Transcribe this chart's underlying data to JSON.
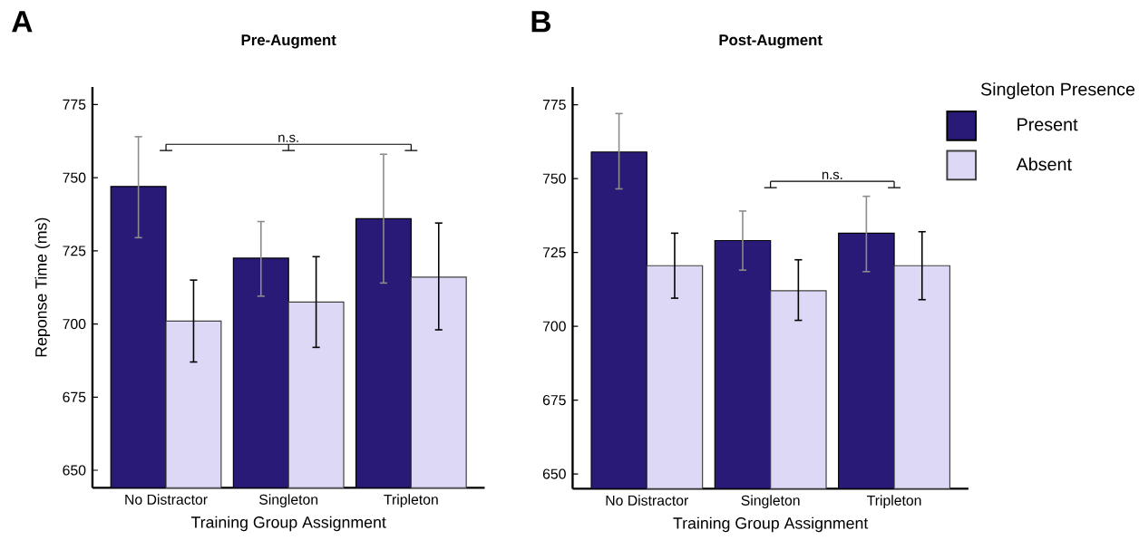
{
  "chart_data": [
    {
      "type": "bar",
      "title": "Pre-Augment",
      "xlabel": "Training Group Assignment",
      "ylabel": "Reponse Time (ms)",
      "categories": [
        "No Distractor",
        "Singleton",
        "Tripleton"
      ],
      "series": [
        {
          "color": "#2a1a78",
          "values": [
            747,
            722.5,
            736
          ],
          "errors": [
            [
              729.5,
              764
            ],
            [
              709.5,
              735
            ],
            [
              714,
              758
            ]
          ]
        },
        {
          "color": "#dcd8f5",
          "values": [
            701,
            707.5,
            716
          ],
          "errors": [
            [
              687,
              715
            ],
            [
              692,
              723
            ],
            [
              698,
              734.5
            ]
          ]
        }
      ],
      "ylim": [
        644,
        781
      ],
      "yticks": [
        650,
        675,
        700,
        725,
        750,
        775
      ],
      "annotations": [
        "A",
        "n.s."
      ]
    },
    {
      "type": "bar",
      "title": "Post-Augment",
      "xlabel": "Training Group Assignment",
      "categories": [
        "No Distractor",
        "Singleton",
        "Tripleton"
      ],
      "series": [
        {
          "name": "Present",
          "color": "#2a1a78",
          "values": [
            759,
            729,
            731.5
          ],
          "errors": [
            [
              746.5,
              772
            ],
            [
              719,
              739
            ],
            [
              718.5,
              744
            ]
          ]
        },
        {
          "name": "Absent",
          "color": "#dcd8f5",
          "values": [
            720.5,
            712,
            720.5
          ],
          "errors": [
            [
              709.5,
              731.5
            ],
            [
              702,
              722.5
            ],
            [
              709,
              732
            ]
          ]
        }
      ],
      "ylim": [
        645,
        781
      ],
      "yticks": [
        650,
        675,
        700,
        725,
        750,
        775
      ],
      "legend": "right",
      "legend_title": "Singleton Presence",
      "annotations": [
        "B",
        "n.s."
      ]
    }
  ]
}
